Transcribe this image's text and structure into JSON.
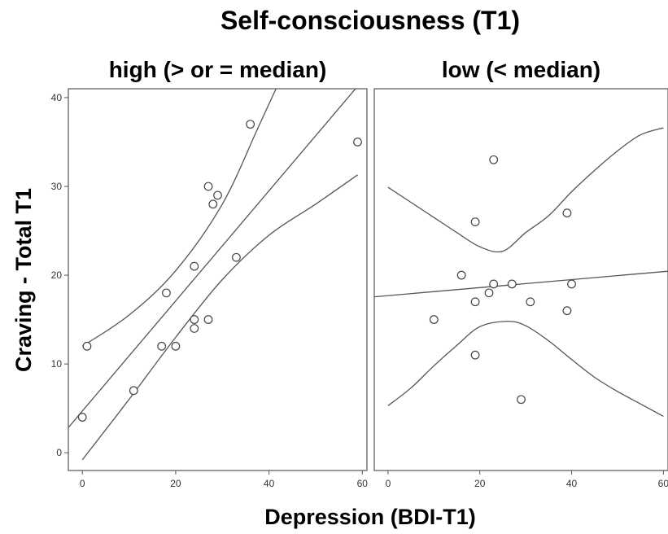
{
  "chart_data": {
    "type": "scatter",
    "title": "Self-consciousness (T1)",
    "xlabel": "Depression (BDI-T1)",
    "ylabel": "Craving - Total T1",
    "xlim": [
      -3,
      61
    ],
    "ylim": [
      -2,
      41
    ],
    "x_ticks": [
      0,
      20,
      40,
      60
    ],
    "y_ticks": [
      0,
      10,
      20,
      30,
      40
    ],
    "grid": false,
    "colors": {
      "frame": "#555555",
      "points": "#444444",
      "lines": "#555555"
    },
    "panels": [
      {
        "title": "high (> or =  median)",
        "points": [
          {
            "x": 0,
            "y": 4
          },
          {
            "x": 1,
            "y": 12
          },
          {
            "x": 11,
            "y": 7
          },
          {
            "x": 17,
            "y": 12
          },
          {
            "x": 18,
            "y": 18
          },
          {
            "x": 20,
            "y": 12
          },
          {
            "x": 24,
            "y": 21
          },
          {
            "x": 24,
            "y": 15
          },
          {
            "x": 24,
            "y": 14
          },
          {
            "x": 27,
            "y": 30
          },
          {
            "x": 27,
            "y": 15
          },
          {
            "x": 28,
            "y": 28
          },
          {
            "x": 29,
            "y": 29
          },
          {
            "x": 33,
            "y": 22
          },
          {
            "x": 36,
            "y": 37
          },
          {
            "x": 59,
            "y": 35
          }
        ],
        "fit_line": {
          "intercept": 4.7,
          "slope": 0.62
        },
        "ci_lines": [
          {
            "name": "upper",
            "points": [
              {
                "x": 0,
                "y": 12
              },
              {
                "x": 10,
                "y": 15.5
              },
              {
                "x": 20,
                "y": 20.5
              },
              {
                "x": 30,
                "y": 28
              },
              {
                "x": 38,
                "y": 37
              },
              {
                "x": 45,
                "y": 45
              }
            ]
          },
          {
            "name": "lower",
            "points": [
              {
                "x": 0,
                "y": -0.8
              },
              {
                "x": 10,
                "y": 6
              },
              {
                "x": 20,
                "y": 13
              },
              {
                "x": 30,
                "y": 19.5
              },
              {
                "x": 40,
                "y": 24.5
              },
              {
                "x": 50,
                "y": 28
              },
              {
                "x": 59,
                "y": 31.3
              }
            ]
          }
        ]
      },
      {
        "title": "low (< median)",
        "points": [
          {
            "x": 10,
            "y": 15
          },
          {
            "x": 16,
            "y": 20
          },
          {
            "x": 19,
            "y": 26
          },
          {
            "x": 19,
            "y": 17
          },
          {
            "x": 19,
            "y": 11
          },
          {
            "x": 22,
            "y": 18
          },
          {
            "x": 23,
            "y": 33
          },
          {
            "x": 23,
            "y": 19
          },
          {
            "x": 27,
            "y": 19
          },
          {
            "x": 29,
            "y": 6
          },
          {
            "x": 31,
            "y": 17
          },
          {
            "x": 39,
            "y": 27
          },
          {
            "x": 39,
            "y": 16
          },
          {
            "x": 40,
            "y": 19
          }
        ],
        "fit_line": {
          "intercept": 17.7,
          "slope": 0.045
        },
        "ci_lines": [
          {
            "name": "upper",
            "points": [
              {
                "x": 0,
                "y": 29.9
              },
              {
                "x": 5,
                "y": 28.2
              },
              {
                "x": 10,
                "y": 26.5
              },
              {
                "x": 15,
                "y": 24.8
              },
              {
                "x": 20,
                "y": 23.2
              },
              {
                "x": 25,
                "y": 22.7
              },
              {
                "x": 30,
                "y": 24.8
              },
              {
                "x": 35,
                "y": 26.7
              },
              {
                "x": 40,
                "y": 29.4
              },
              {
                "x": 45,
                "y": 31.8
              },
              {
                "x": 50,
                "y": 34
              },
              {
                "x": 55,
                "y": 35.8
              },
              {
                "x": 60,
                "y": 36.6
              }
            ]
          },
          {
            "name": "lower",
            "points": [
              {
                "x": 0,
                "y": 5.3
              },
              {
                "x": 5,
                "y": 7.3
              },
              {
                "x": 10,
                "y": 9.8
              },
              {
                "x": 15,
                "y": 12.1
              },
              {
                "x": 20,
                "y": 14.2
              },
              {
                "x": 26,
                "y": 14.8
              },
              {
                "x": 30,
                "y": 14.3
              },
              {
                "x": 35,
                "y": 12.6
              },
              {
                "x": 40,
                "y": 10.5
              },
              {
                "x": 45,
                "y": 8.5
              },
              {
                "x": 50,
                "y": 6.9
              },
              {
                "x": 55,
                "y": 5.5
              },
              {
                "x": 60,
                "y": 4.1
              }
            ]
          }
        ]
      }
    ]
  }
}
